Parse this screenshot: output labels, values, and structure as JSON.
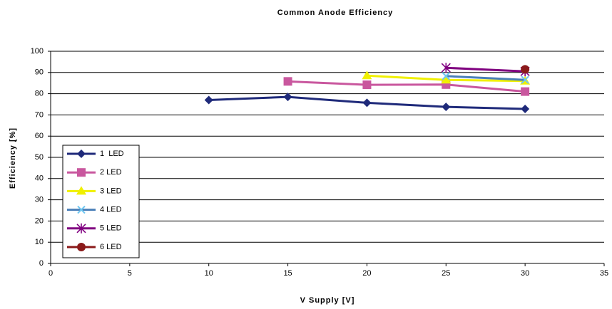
{
  "chart_data": {
    "type": "line",
    "title": "Common Anode Efficiency",
    "xlabel": "V Supply [V]",
    "ylabel": "Efficiency [%]",
    "annotation": ".",
    "xlim": [
      0,
      35
    ],
    "xticks": [
      0,
      5,
      10,
      15,
      20,
      25,
      30,
      35
    ],
    "ylim": [
      0,
      100
    ],
    "yticks": [
      0,
      10,
      20,
      30,
      40,
      50,
      60,
      70,
      80,
      90,
      100
    ],
    "grid": true,
    "legend": "lower left",
    "series": [
      {
        "name": "1  LED",
        "color": "#1f2a7a",
        "marker": "diamond",
        "x": [
          10,
          15,
          20,
          25,
          30
        ],
        "values": [
          77,
          78.5,
          75.7,
          73.8,
          72.8
        ]
      },
      {
        "name": "2 LED",
        "color": "#c9579e",
        "marker": "square",
        "x": [
          15,
          20,
          25,
          30
        ],
        "values": [
          85.8,
          84.2,
          84.3,
          81
        ]
      },
      {
        "name": "3 LED",
        "color": "#f0f000",
        "marker": "triangle",
        "x": [
          20,
          25,
          30
        ],
        "values": [
          88.5,
          86.5,
          86
        ]
      },
      {
        "name": "4 LED",
        "color": "#4a7fb8",
        "marker": "x",
        "x": [
          25,
          30
        ],
        "values": [
          88.3,
          86.5
        ]
      },
      {
        "name": "5 LED",
        "color": "#800080",
        "marker": "star",
        "x": [
          25,
          30
        ],
        "values": [
          92.2,
          90.5
        ]
      },
      {
        "name": "6 LED",
        "color": "#8b1a1a",
        "marker": "circle",
        "x": [
          30
        ],
        "values": [
          91.5
        ]
      }
    ]
  }
}
